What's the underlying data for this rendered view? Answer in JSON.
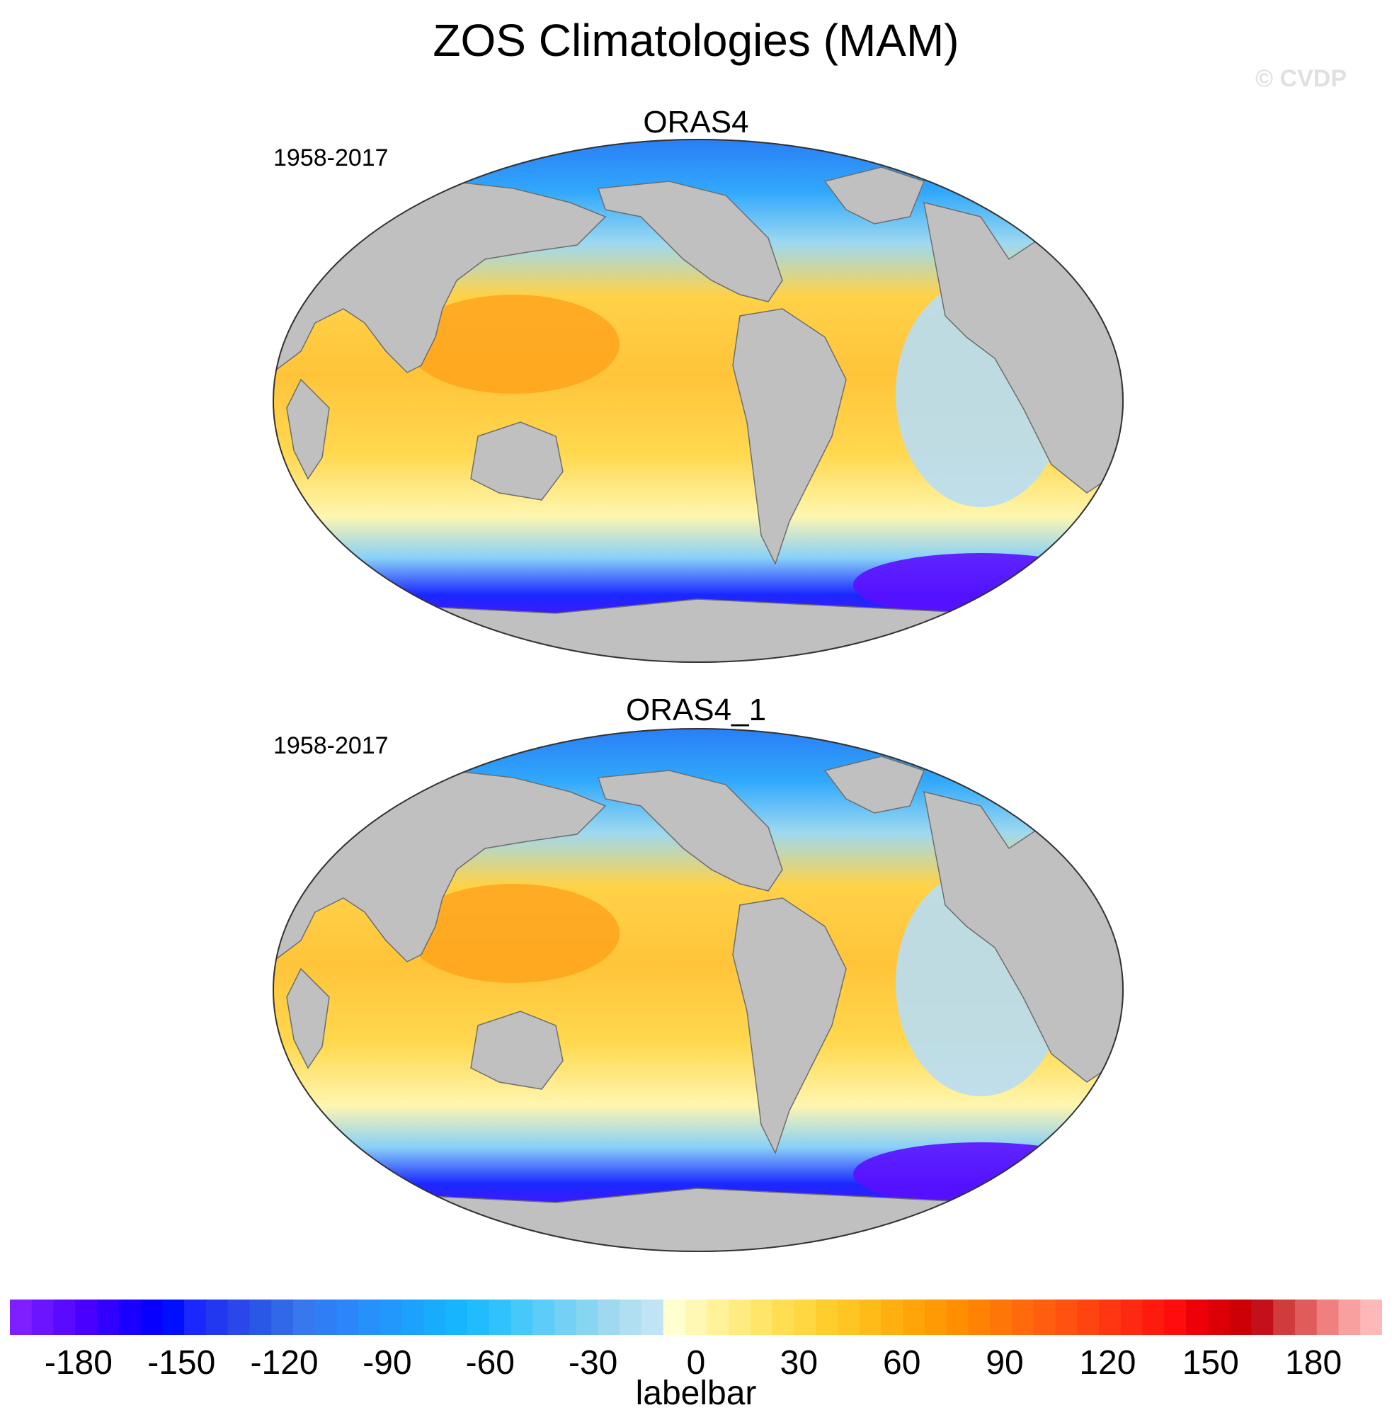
{
  "title": "ZOS Climatologies (MAM)",
  "watermark": "© CVDP",
  "panels": [
    {
      "title": "ORAS4",
      "period": "1958-2017"
    },
    {
      "title": "ORAS4_1",
      "period": "1958-2017"
    }
  ],
  "colorbar": {
    "label": "labelbar",
    "min": -200,
    "max": 200,
    "ticks": [
      "-180",
      "-150",
      "-120",
      "-90",
      "-60",
      "-30",
      "0",
      "30",
      "60",
      "90",
      "120",
      "150",
      "180"
    ],
    "tick_values": [
      -180,
      -150,
      -120,
      -90,
      -60,
      -30,
      0,
      30,
      60,
      90,
      120,
      150,
      180
    ],
    "colors": [
      "#7f1fff",
      "#6a14ff",
      "#5a0aff",
      "#4a00ff",
      "#3200ff",
      "#1a00ff",
      "#0800ff",
      "#0010ff",
      "#1a28ff",
      "#2238f0",
      "#2a48ea",
      "#2a58e6",
      "#3068e8",
      "#3878ee",
      "#2f7ef5",
      "#2a86fa",
      "#2690fb",
      "#2198fc",
      "#1ca2fd",
      "#18acfd",
      "#16b6fe",
      "#20bcfe",
      "#30c2fc",
      "#46c8fa",
      "#5ccdf8",
      "#72d1f4",
      "#88d5f2",
      "#9ed9f0",
      "#b0dff2",
      "#c0e4f4",
      "#ffffd0",
      "#fff8b4",
      "#fff299",
      "#ffec80",
      "#ffe568",
      "#ffde52",
      "#ffd740",
      "#ffce2c",
      "#ffc522",
      "#ffbb18",
      "#ffb010",
      "#ffa508",
      "#ff9a04",
      "#ff8e00",
      "#ff8204",
      "#ff7608",
      "#ff6a0c",
      "#ff5e0e",
      "#ff5210",
      "#ff4410",
      "#ff3610",
      "#ff2810",
      "#ff1a0e",
      "#ff0c0c",
      "#ee0008",
      "#dc0006",
      "#cc0004",
      "#c4101a",
      "#d03c3c",
      "#e05c5c",
      "#f08080",
      "#f8a0a0",
      "#fdb8b8"
    ]
  }
}
